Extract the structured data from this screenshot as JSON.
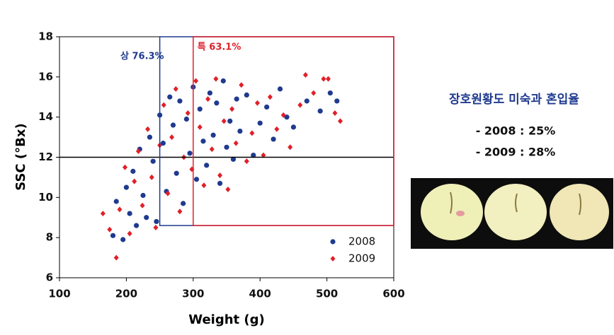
{
  "chart_data": {
    "type": "scatter",
    "xlabel": "Weight (g)",
    "ylabel": "SSC (°Bx)",
    "xlim": [
      100,
      600
    ],
    "xticks": [
      100,
      200,
      300,
      400,
      500,
      600
    ],
    "ylim": [
      6,
      18
    ],
    "yticks": [
      6,
      8,
      10,
      12,
      14,
      16,
      18
    ],
    "grid": false,
    "legend": "lower right",
    "series": [
      {
        "name": "2008",
        "color": "#1f3a8f",
        "marker": "circle",
        "x": [
          180,
          185,
          195,
          200,
          205,
          210,
          215,
          220,
          225,
          230,
          235,
          240,
          245,
          250,
          255,
          260,
          265,
          270,
          275,
          280,
          285,
          290,
          295,
          300,
          305,
          310,
          315,
          320,
          325,
          330,
          335,
          340,
          345,
          350,
          355,
          360,
          365,
          370,
          380,
          390,
          400,
          410,
          420,
          430,
          440,
          450,
          470,
          490,
          505,
          515
        ],
        "values": [
          8.1,
          9.8,
          7.9,
          10.5,
          9.2,
          11.3,
          8.6,
          12.4,
          10.1,
          9.0,
          13.0,
          11.8,
          8.8,
          14.1,
          12.7,
          10.3,
          15.0,
          13.6,
          11.2,
          14.8,
          9.7,
          13.9,
          12.2,
          15.5,
          10.9,
          14.4,
          12.8,
          11.6,
          15.2,
          13.1,
          14.7,
          10.7,
          15.8,
          12.5,
          13.8,
          11.9,
          14.9,
          13.3,
          15.1,
          12.1,
          13.7,
          14.5,
          12.9,
          15.4,
          14.0,
          13.5,
          14.8,
          14.3,
          15.2,
          14.8
        ]
      },
      {
        "name": "2009",
        "color": "#e0202a",
        "marker": "diamond",
        "x": [
          165,
          175,
          185,
          190,
          198,
          205,
          212,
          218,
          224,
          232,
          238,
          244,
          250,
          256,
          262,
          268,
          274,
          280,
          286,
          292,
          298,
          304,
          310,
          316,
          322,
          328,
          334,
          340,
          346,
          352,
          358,
          364,
          372,
          380,
          388,
          396,
          405,
          415,
          425,
          435,
          445,
          460,
          468,
          480,
          495,
          502,
          512,
          520
        ],
        "values": [
          9.2,
          8.4,
          7.0,
          9.4,
          11.5,
          8.2,
          10.8,
          12.3,
          9.6,
          13.4,
          11.0,
          8.5,
          12.6,
          14.6,
          10.2,
          13.0,
          15.4,
          9.3,
          12.0,
          14.2,
          11.4,
          15.8,
          13.5,
          10.6,
          14.9,
          12.4,
          15.9,
          11.1,
          13.8,
          10.4,
          14.4,
          12.7,
          15.6,
          11.8,
          13.2,
          14.7,
          12.1,
          15.0,
          13.4,
          14.1,
          12.5,
          14.6,
          16.1,
          15.2,
          15.9,
          15.9,
          14.2,
          13.8
        ]
      }
    ],
    "hline": {
      "y": 12,
      "color": "#000000"
    },
    "regions": [
      {
        "x": [
          250,
          600
        ],
        "y": [
          8.6,
          18
        ],
        "color": "#1f3a8f",
        "label": "상 76.3%"
      },
      {
        "x": [
          300,
          600
        ],
        "y": [
          8.6,
          18
        ],
        "color": "#e0202a",
        "label": "특 63.1%"
      }
    ]
  },
  "side_panel": {
    "title": "장호원황도 미숙과 혼입율",
    "lines": [
      "- 2008 : 25%",
      "- 2009 : 28%"
    ]
  }
}
